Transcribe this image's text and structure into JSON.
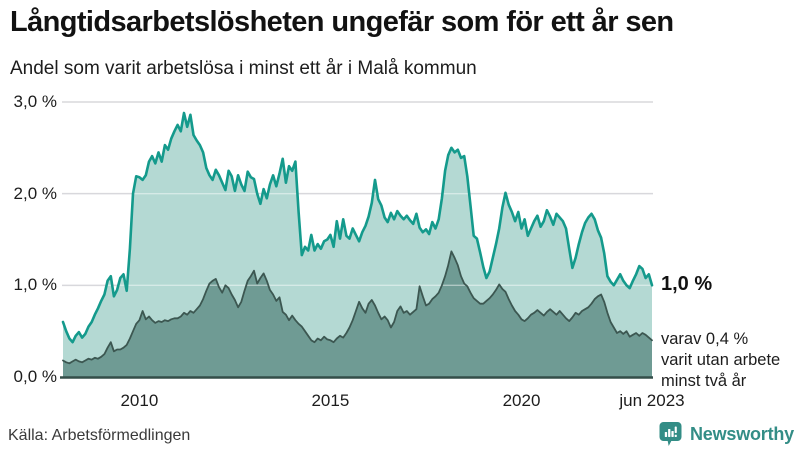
{
  "header": {
    "title": "Långtidsarbetslösheten ungefär som för ett år sen",
    "subtitle": "Andel som varit arbetslösa i minst ett år i Malå kommun"
  },
  "chart_data": {
    "type": "area",
    "unit": "%",
    "x_start": "jan 2008",
    "x_end": "jun 2023",
    "points_per_year": 12,
    "ylim": [
      0,
      3
    ],
    "grid": true,
    "yticks": [
      {
        "label": "0,0 %",
        "value": 0
      },
      {
        "label": "1,0 %",
        "value": 1
      },
      {
        "label": "2,0 %",
        "value": 2
      },
      {
        "label": "3,0 %",
        "value": 3
      }
    ],
    "xticks": [
      {
        "label": "2010",
        "month_index": 24
      },
      {
        "label": "2015",
        "month_index": 84
      },
      {
        "label": "2020",
        "month_index": 144
      },
      {
        "label": "jun 2023",
        "month_index": 185
      }
    ],
    "series": [
      {
        "name": "Arbetslösa minst ett år",
        "line_color": "#149a8c",
        "fill_color": "#b4d9d3",
        "line_width": 2.6,
        "values": [
          0.6,
          0.5,
          0.42,
          0.38,
          0.45,
          0.49,
          0.43,
          0.47,
          0.55,
          0.6,
          0.68,
          0.75,
          0.83,
          0.9,
          1.05,
          1.1,
          0.88,
          0.95,
          1.08,
          1.12,
          0.94,
          1.4,
          2.0,
          2.19,
          2.18,
          2.15,
          2.2,
          2.35,
          2.41,
          2.33,
          2.45,
          2.35,
          2.53,
          2.48,
          2.6,
          2.68,
          2.75,
          2.68,
          2.88,
          2.73,
          2.86,
          2.64,
          2.58,
          2.53,
          2.45,
          2.28,
          2.2,
          2.15,
          2.26,
          2.2,
          2.12,
          2.04,
          2.25,
          2.19,
          2.03,
          2.2,
          2.1,
          2.03,
          2.24,
          2.18,
          2.16,
          2.0,
          1.89,
          2.05,
          1.95,
          2.1,
          2.2,
          2.08,
          2.22,
          2.38,
          2.12,
          2.3,
          2.25,
          2.35,
          1.8,
          1.33,
          1.42,
          1.38,
          1.55,
          1.38,
          1.45,
          1.4,
          1.48,
          1.5,
          1.55,
          1.42,
          1.7,
          1.51,
          1.72,
          1.54,
          1.51,
          1.62,
          1.55,
          1.48,
          1.58,
          1.65,
          1.75,
          1.9,
          2.15,
          1.94,
          1.87,
          1.74,
          1.69,
          1.79,
          1.72,
          1.81,
          1.76,
          1.72,
          1.76,
          1.71,
          1.67,
          1.78,
          1.63,
          1.58,
          1.61,
          1.56,
          1.69,
          1.62,
          1.72,
          1.95,
          2.25,
          2.42,
          2.5,
          2.45,
          2.48,
          2.39,
          2.41,
          2.19,
          1.87,
          1.54,
          1.51,
          1.36,
          1.2,
          1.08,
          1.15,
          1.3,
          1.45,
          1.62,
          1.85,
          2.01,
          1.88,
          1.8,
          1.7,
          1.8,
          1.62,
          1.72,
          1.54,
          1.62,
          1.7,
          1.76,
          1.64,
          1.7,
          1.82,
          1.75,
          1.66,
          1.78,
          1.74,
          1.7,
          1.62,
          1.4,
          1.19,
          1.3,
          1.45,
          1.58,
          1.68,
          1.74,
          1.78,
          1.72,
          1.6,
          1.52,
          1.35,
          1.1,
          1.04,
          1.0,
          1.06,
          1.12,
          1.05,
          1.0,
          0.97,
          1.05,
          1.12,
          1.21,
          1.18,
          1.08,
          1.12,
          1.0
        ]
      },
      {
        "name": "Arbetslösa minst två år",
        "line_color": "#3c5751",
        "fill_color": "#6f9b94",
        "line_width": 1.8,
        "values": [
          0.18,
          0.16,
          0.15,
          0.17,
          0.19,
          0.17,
          0.16,
          0.18,
          0.2,
          0.19,
          0.21,
          0.2,
          0.22,
          0.25,
          0.32,
          0.38,
          0.28,
          0.3,
          0.3,
          0.32,
          0.35,
          0.42,
          0.5,
          0.58,
          0.62,
          0.72,
          0.63,
          0.66,
          0.62,
          0.59,
          0.61,
          0.6,
          0.62,
          0.61,
          0.63,
          0.64,
          0.64,
          0.66,
          0.7,
          0.68,
          0.72,
          0.7,
          0.74,
          0.78,
          0.85,
          0.94,
          1.02,
          1.05,
          1.07,
          0.98,
          0.92,
          1.0,
          0.97,
          0.9,
          0.84,
          0.76,
          0.82,
          0.94,
          1.05,
          1.1,
          1.16,
          1.02,
          1.08,
          1.13,
          1.05,
          0.95,
          0.9,
          0.83,
          0.87,
          0.71,
          0.68,
          0.62,
          0.67,
          0.62,
          0.58,
          0.55,
          0.5,
          0.45,
          0.4,
          0.38,
          0.42,
          0.4,
          0.44,
          0.41,
          0.4,
          0.38,
          0.42,
          0.45,
          0.43,
          0.48,
          0.54,
          0.62,
          0.72,
          0.82,
          0.75,
          0.7,
          0.8,
          0.84,
          0.78,
          0.7,
          0.63,
          0.66,
          0.62,
          0.54,
          0.6,
          0.72,
          0.77,
          0.7,
          0.72,
          0.68,
          0.71,
          0.74,
          0.99,
          0.88,
          0.78,
          0.8,
          0.85,
          0.88,
          0.92,
          1.0,
          1.1,
          1.22,
          1.37,
          1.3,
          1.22,
          1.1,
          1.02,
          0.99,
          0.92,
          0.86,
          0.83,
          0.8,
          0.8,
          0.83,
          0.86,
          0.9,
          0.95,
          1.01,
          0.96,
          0.93,
          0.85,
          0.78,
          0.72,
          0.68,
          0.63,
          0.61,
          0.64,
          0.68,
          0.7,
          0.73,
          0.7,
          0.67,
          0.71,
          0.74,
          0.71,
          0.68,
          0.72,
          0.68,
          0.64,
          0.61,
          0.65,
          0.7,
          0.68,
          0.72,
          0.74,
          0.76,
          0.8,
          0.85,
          0.88,
          0.9,
          0.82,
          0.7,
          0.6,
          0.54,
          0.48,
          0.5,
          0.47,
          0.5,
          0.44,
          0.46,
          0.48,
          0.45,
          0.48,
          0.46,
          0.43,
          0.4
        ]
      }
    ],
    "annotations": {
      "latest_value_label": "1,0 %",
      "note": "varav 0,4 %\nvarit utan arbete\nminst två år"
    }
  },
  "footer": {
    "source": "Källa: Arbetsförmedlingen",
    "brand": "Newsworthy"
  },
  "colors": {
    "background": "#ffffff",
    "gridline": "#d8d8dc",
    "gridline_overlay": "rgba(255,255,255,0.45)",
    "baseline": "#344e49",
    "accent_teal": "#149a8c",
    "brand_teal": "#338d86"
  }
}
